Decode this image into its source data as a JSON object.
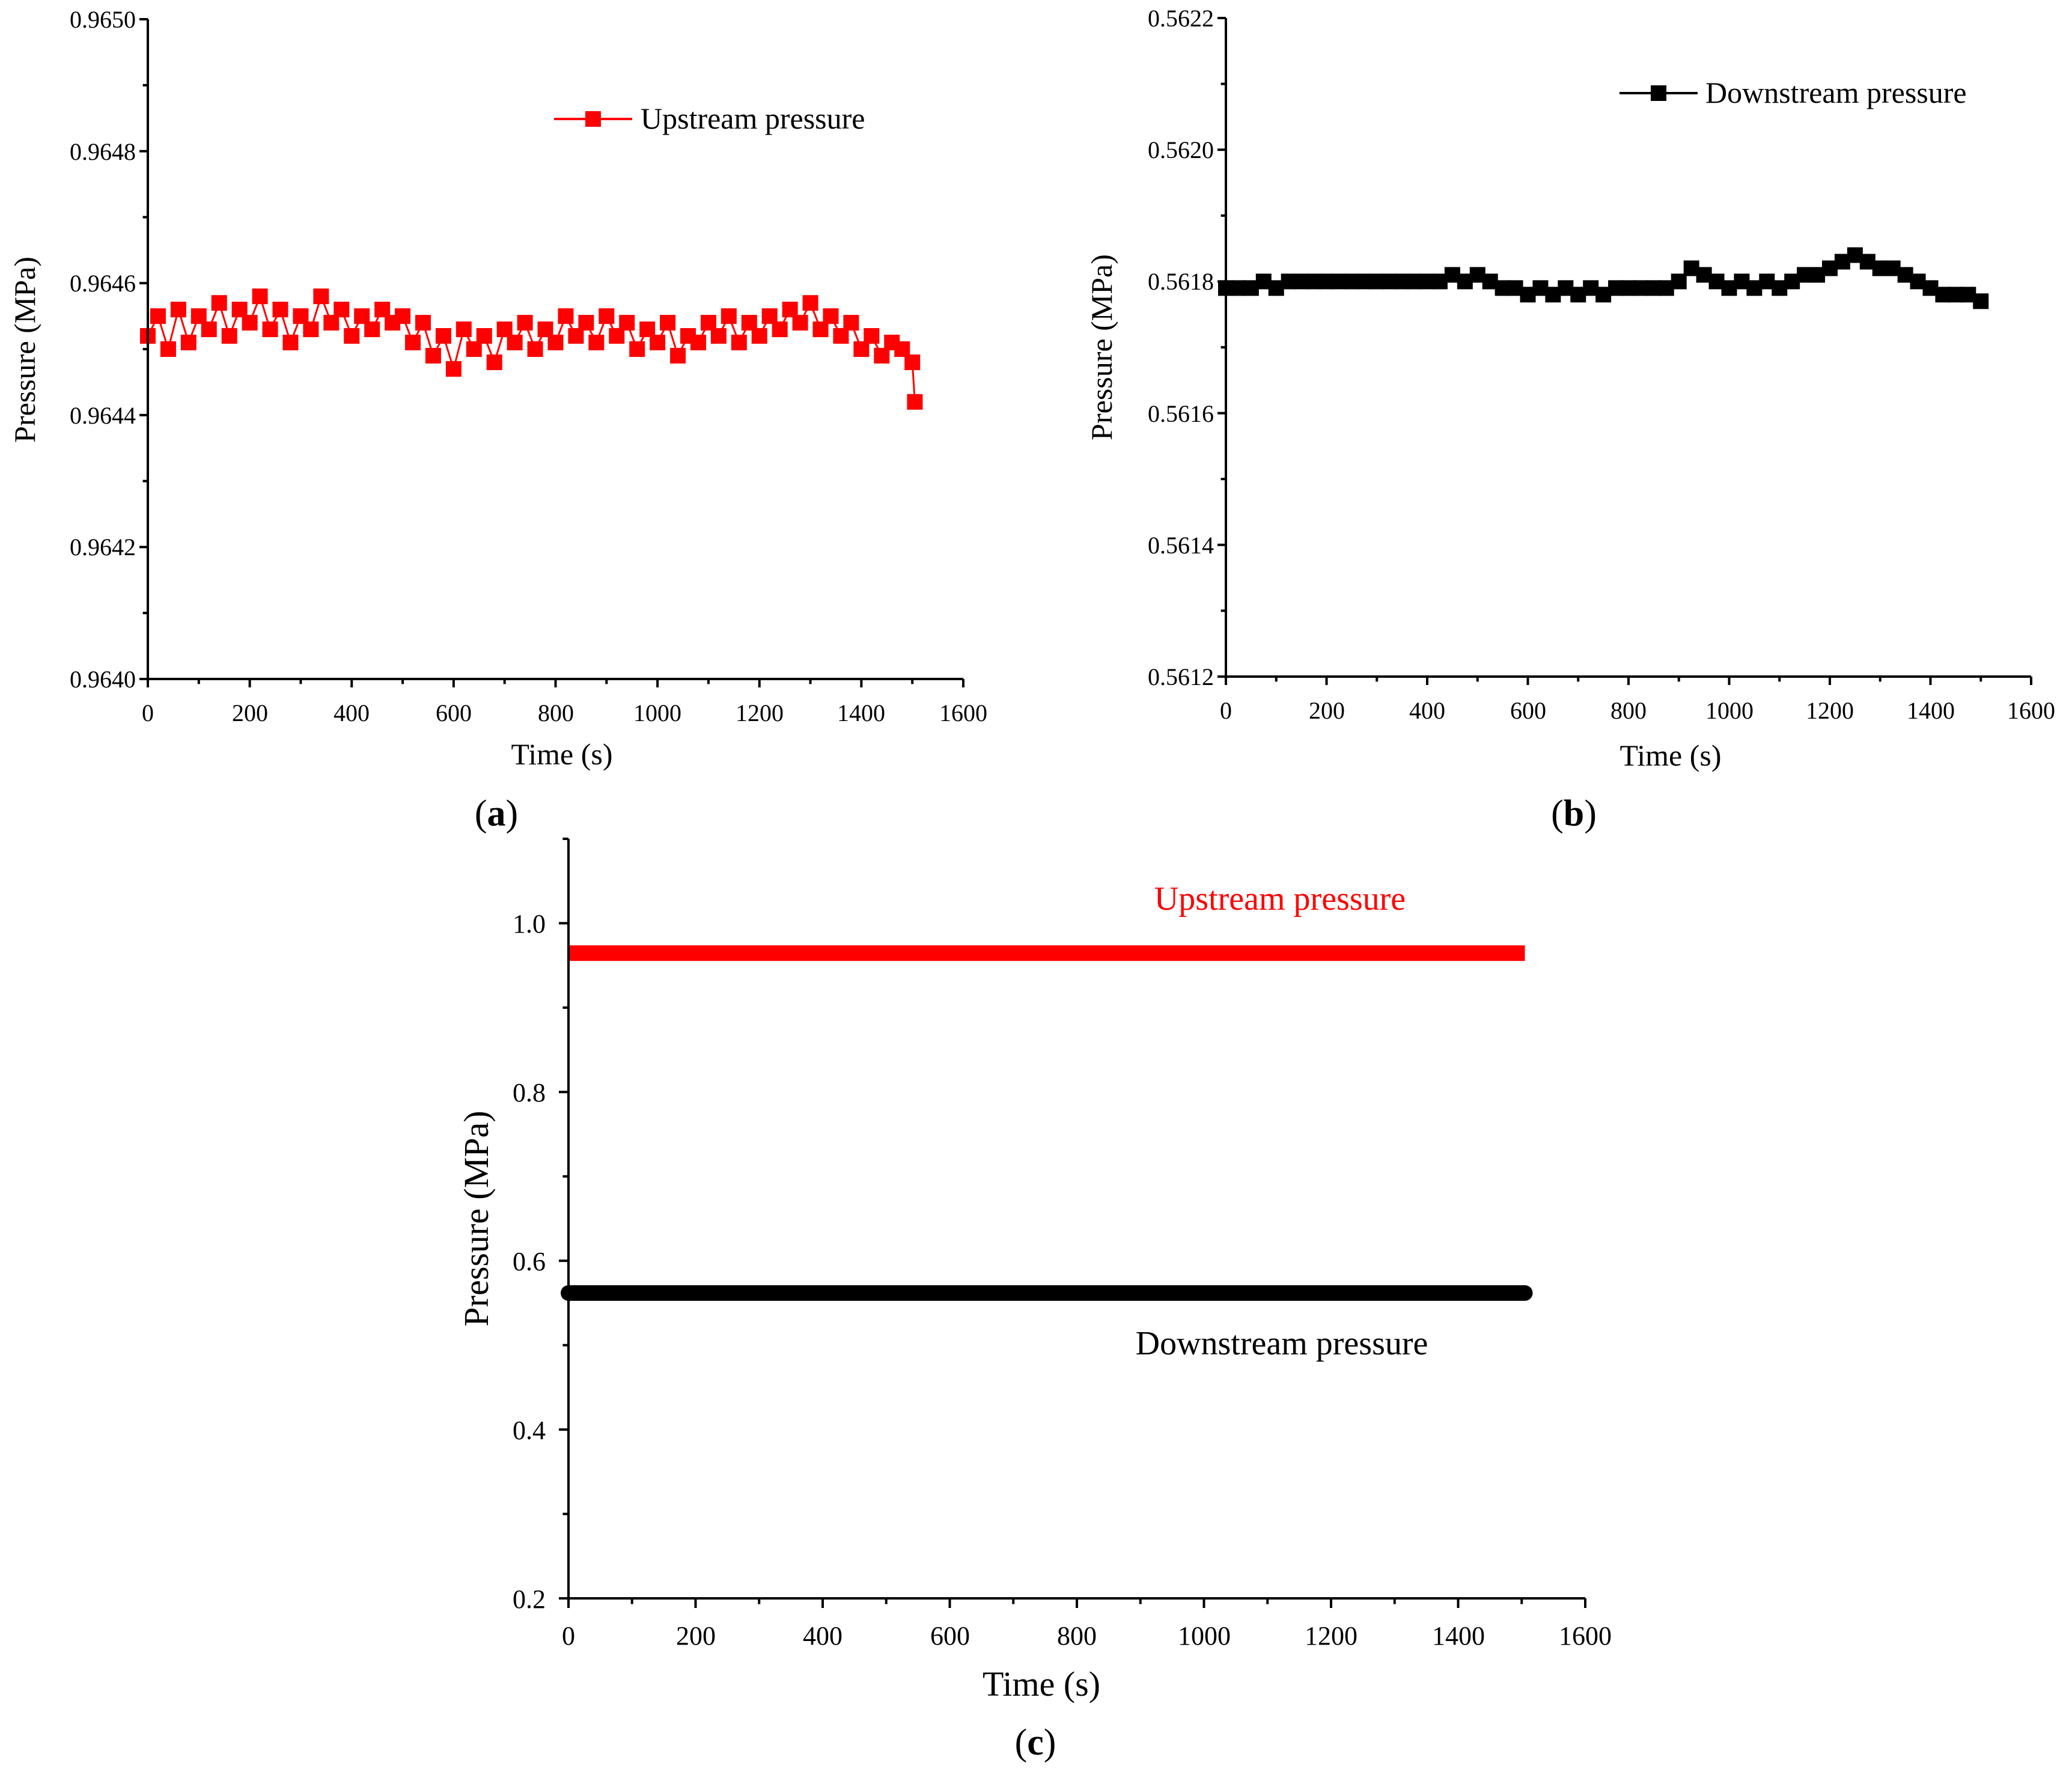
{
  "chart_data": [
    {
      "type": "scatter",
      "panel_label": "a",
      "title": "",
      "xlabel": "Time (s)",
      "ylabel": "Pressure (MPa)",
      "xlim": [
        0,
        1600
      ],
      "ylim": [
        0.964,
        0.965
      ],
      "xticks": [
        "0",
        "200",
        "400",
        "600",
        "800",
        "1000",
        "1200",
        "1400",
        "1600"
      ],
      "yticks": [
        "0.9640",
        "0.9642",
        "0.9644",
        "0.9646",
        "0.9648",
        "0.9650"
      ],
      "legend": {
        "label": "Upstream pressure",
        "position": "top-right"
      },
      "series": [
        {
          "name": "Upstream pressure",
          "color": "#ff0000",
          "marker": "square",
          "x": [
            0,
            20,
            40,
            60,
            80,
            100,
            120,
            140,
            160,
            180,
            200,
            220,
            240,
            260,
            280,
            300,
            320,
            340,
            360,
            380,
            400,
            420,
            440,
            460,
            480,
            500,
            520,
            540,
            560,
            580,
            600,
            620,
            640,
            660,
            680,
            700,
            720,
            740,
            760,
            780,
            800,
            820,
            840,
            860,
            880,
            900,
            920,
            940,
            960,
            980,
            1000,
            1020,
            1040,
            1060,
            1080,
            1100,
            1120,
            1140,
            1160,
            1180,
            1200,
            1220,
            1240,
            1260,
            1280,
            1300,
            1320,
            1340,
            1360,
            1380,
            1400,
            1420,
            1440,
            1460,
            1480,
            1500,
            1505
          ],
          "y": [
            0.96452,
            0.96455,
            0.9645,
            0.96456,
            0.96451,
            0.96455,
            0.96453,
            0.96457,
            0.96452,
            0.96456,
            0.96454,
            0.96458,
            0.96453,
            0.96456,
            0.96451,
            0.96455,
            0.96453,
            0.96458,
            0.96454,
            0.96456,
            0.96452,
            0.96455,
            0.96453,
            0.96456,
            0.96454,
            0.96455,
            0.96451,
            0.96454,
            0.96449,
            0.96452,
            0.96447,
            0.96453,
            0.9645,
            0.96452,
            0.96448,
            0.96453,
            0.96451,
            0.96454,
            0.9645,
            0.96453,
            0.96451,
            0.96455,
            0.96452,
            0.96454,
            0.96451,
            0.96455,
            0.96452,
            0.96454,
            0.9645,
            0.96453,
            0.96451,
            0.96454,
            0.96449,
            0.96452,
            0.96451,
            0.96454,
            0.96452,
            0.96455,
            0.96451,
            0.96454,
            0.96452,
            0.96455,
            0.96453,
            0.96456,
            0.96454,
            0.96457,
            0.96453,
            0.96455,
            0.96452,
            0.96454,
            0.9645,
            0.96452,
            0.96449,
            0.96451,
            0.9645,
            0.96448,
            0.96442
          ]
        }
      ]
    },
    {
      "type": "scatter",
      "panel_label": "b",
      "title": "",
      "xlabel": "Time (s)",
      "ylabel": "Pressure (MPa)",
      "xlim": [
        0,
        1600
      ],
      "ylim": [
        0.5612,
        0.5622
      ],
      "xticks": [
        "0",
        "200",
        "400",
        "600",
        "800",
        "1000",
        "1200",
        "1400",
        "1600"
      ],
      "yticks": [
        "0.5612",
        "0.5614",
        "0.5616",
        "0.5618",
        "0.5620",
        "0.5622"
      ],
      "legend": {
        "label": "Downstream pressure",
        "position": "top-right"
      },
      "series": [
        {
          "name": "Downstream pressure",
          "color": "#000000",
          "marker": "square",
          "x": [
            0,
            25,
            50,
            75,
            100,
            125,
            150,
            175,
            200,
            225,
            250,
            275,
            300,
            325,
            350,
            375,
            400,
            425,
            450,
            475,
            500,
            525,
            550,
            575,
            600,
            625,
            650,
            675,
            700,
            725,
            750,
            775,
            800,
            825,
            850,
            875,
            900,
            925,
            950,
            975,
            1000,
            1025,
            1050,
            1075,
            1100,
            1125,
            1150,
            1175,
            1200,
            1225,
            1250,
            1275,
            1300,
            1325,
            1350,
            1375,
            1400,
            1425,
            1450,
            1475,
            1500
          ],
          "y": [
            0.56179,
            0.56179,
            0.56179,
            0.5618,
            0.56179,
            0.5618,
            0.5618,
            0.5618,
            0.5618,
            0.5618,
            0.5618,
            0.5618,
            0.5618,
            0.5618,
            0.5618,
            0.5618,
            0.5618,
            0.5618,
            0.56181,
            0.5618,
            0.56181,
            0.5618,
            0.56179,
            0.56179,
            0.56178,
            0.56179,
            0.56178,
            0.56179,
            0.56178,
            0.56179,
            0.56178,
            0.56179,
            0.56179,
            0.56179,
            0.56179,
            0.56179,
            0.5618,
            0.56182,
            0.56181,
            0.5618,
            0.56179,
            0.5618,
            0.56179,
            0.5618,
            0.56179,
            0.5618,
            0.56181,
            0.56181,
            0.56182,
            0.56183,
            0.56184,
            0.56183,
            0.56182,
            0.56182,
            0.56181,
            0.5618,
            0.56179,
            0.56178,
            0.56178,
            0.56178,
            0.56177
          ]
        }
      ]
    },
    {
      "type": "line",
      "panel_label": "c",
      "title": "",
      "xlabel": "Time (s)",
      "ylabel": "Pressure (MPa)",
      "xlim": [
        0,
        1600
      ],
      "ylim": [
        0.2,
        1.1
      ],
      "xticks": [
        "0",
        "200",
        "400",
        "600",
        "800",
        "1000",
        "1200",
        "1400",
        "1600"
      ],
      "yticks": [
        "0.2",
        "0.4",
        "0.6",
        "0.8",
        "1.0"
      ],
      "annotations": [
        "Upstream pressure",
        "Downstream pressure"
      ],
      "series": [
        {
          "name": "Upstream pressure",
          "color": "#ff0000",
          "x": [
            0,
            1505
          ],
          "y": [
            0.9645,
            0.9645
          ]
        },
        {
          "name": "Downstream pressure",
          "color": "#000000",
          "x": [
            0,
            1505
          ],
          "y": [
            0.5618,
            0.5618
          ]
        }
      ]
    }
  ]
}
